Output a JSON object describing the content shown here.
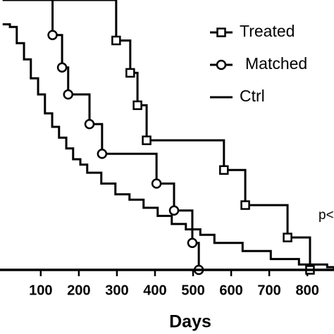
{
  "chart_data": {
    "type": "line",
    "step": true,
    "x_label": "Days",
    "xlim": [
      -7,
      870
    ],
    "ylim": [
      0,
      100
    ],
    "xticks": [
      100,
      200,
      300,
      400,
      500,
      600,
      700,
      800
    ],
    "annotation": "p<",
    "series": [
      {
        "name": "Treated",
        "color": "#000000",
        "marker": "square",
        "x": [
          0,
          298,
          335,
          354,
          378,
          581,
          637,
          748,
          807
        ],
        "values": [
          100,
          85,
          73,
          61,
          48,
          37,
          24,
          12,
          0
        ]
      },
      {
        "name": "Matched",
        "color": "#000000",
        "marker": "circle",
        "x": [
          0,
          131,
          156,
          172,
          228,
          261,
          404,
          450,
          498,
          515
        ],
        "values": [
          100,
          87,
          75,
          65,
          54,
          43,
          32,
          22,
          10,
          0
        ]
      },
      {
        "name": "Ctrl",
        "color": "#000000",
        "marker": "none",
        "x": [
          0,
          19,
          37,
          56,
          74,
          93,
          111,
          130,
          148,
          167,
          185,
          204,
          222,
          259,
          296,
          333,
          370,
          407,
          444,
          481,
          519,
          556,
          630,
          704,
          778,
          852,
          870
        ],
        "values": [
          91,
          90,
          84,
          78,
          71,
          65,
          58,
          53,
          49,
          45,
          41,
          39,
          36,
          32,
          28,
          26,
          23,
          20,
          17,
          15,
          13,
          10,
          7,
          4,
          2,
          1,
          0
        ]
      }
    ]
  }
}
